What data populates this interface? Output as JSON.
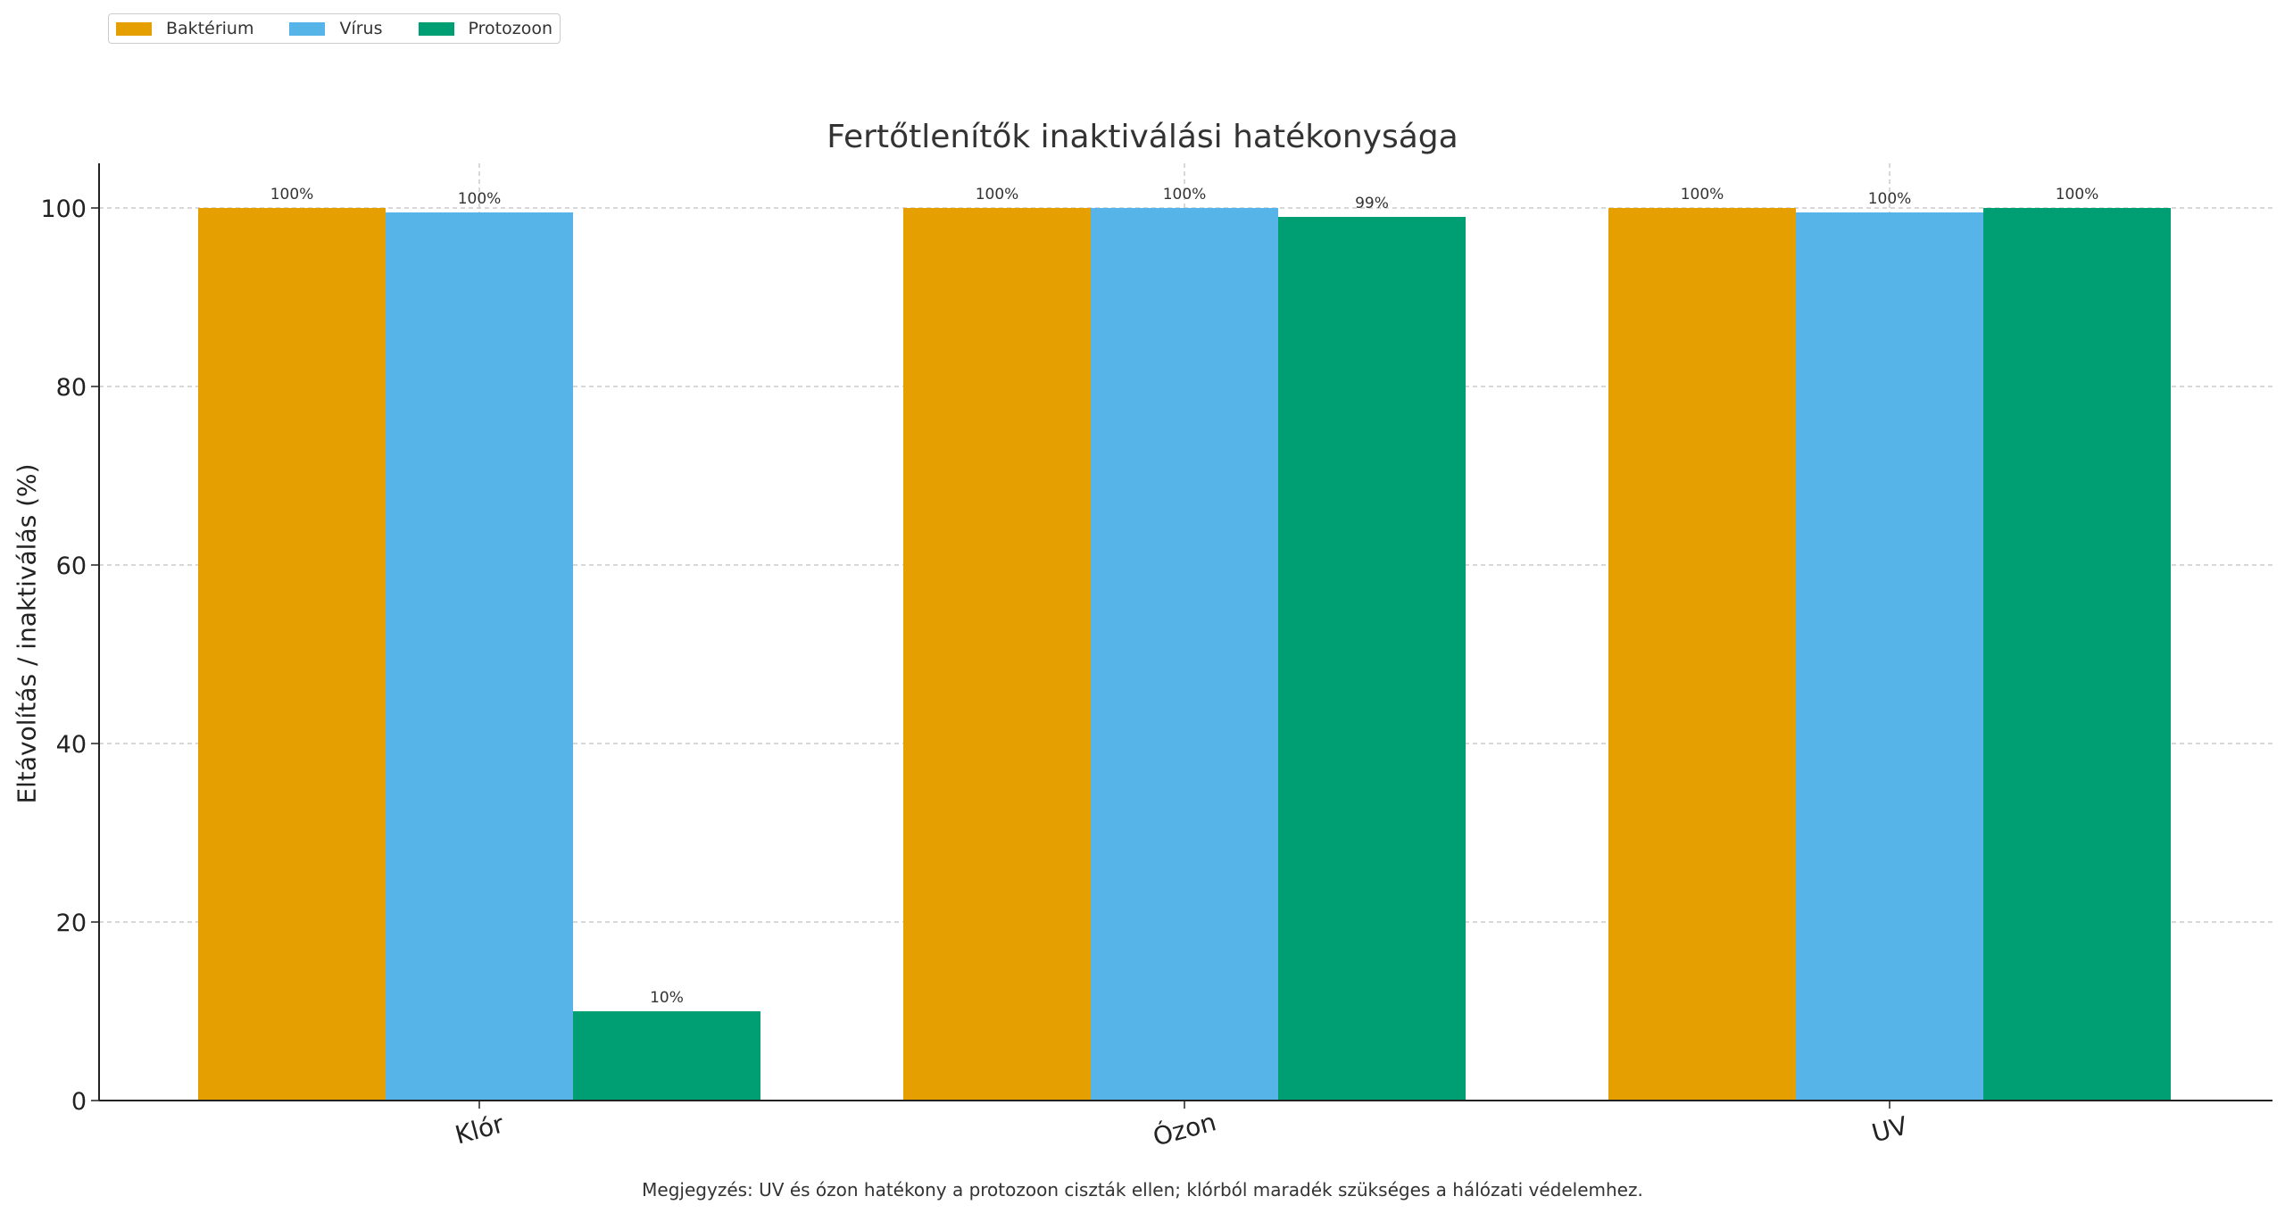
{
  "chart_data": {
    "type": "bar",
    "title": "Fertőtlenítők inaktiválási hatékonysága",
    "xlabel": "",
    "ylabel": "Eltávolítás / inaktiválás (%)",
    "categories": [
      "Klór",
      "Ózon",
      "UV"
    ],
    "series": [
      {
        "name": "Baktérium",
        "color": "#E69F00",
        "values": [
          100,
          100,
          100
        ],
        "labels": [
          "100%",
          "100%",
          "100%"
        ]
      },
      {
        "name": "Vírus",
        "color": "#56B4E9",
        "values": [
          99.5,
          100,
          99.5
        ],
        "labels": [
          "100%",
          "100%",
          "100%"
        ]
      },
      {
        "name": "Protozoon",
        "color": "#009E73",
        "values": [
          10,
          99,
          100
        ],
        "labels": [
          "10%",
          "99%",
          "100%"
        ]
      }
    ],
    "ylim": [
      0,
      105
    ],
    "yticks": [
      0,
      20,
      40,
      60,
      80,
      100
    ],
    "grid": true,
    "legend_position": "top-left",
    "note": "Megjegyzés: UV és ózon hatékony a protozoon ciszták ellen; klórból maradék szükséges a hálózati védelemhez."
  }
}
